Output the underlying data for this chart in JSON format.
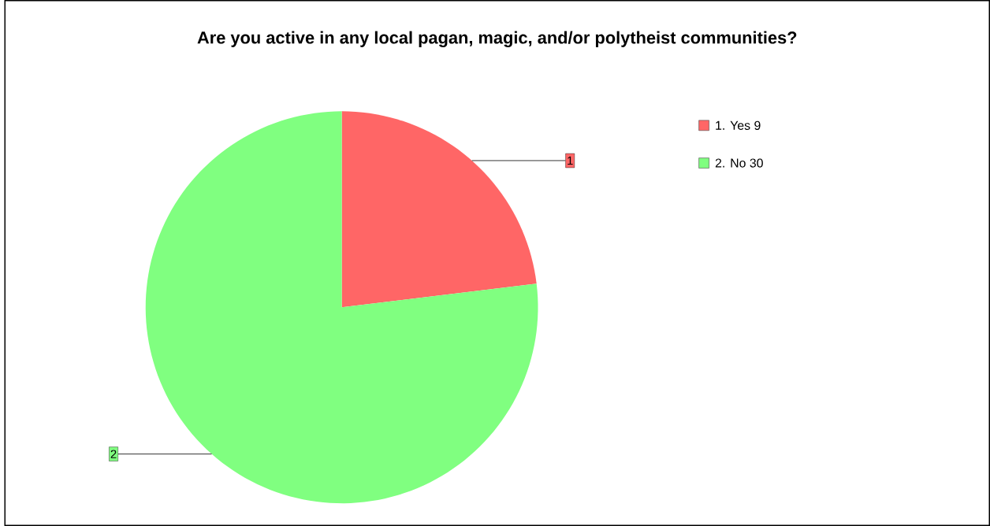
{
  "chart_data": {
    "type": "pie",
    "title": "Are you active in any local pagan, magic, and/or polytheist communities?",
    "categories": [
      "1. Yes",
      "2. No"
    ],
    "values": [
      9,
      30
    ],
    "colors": [
      "#ff6666",
      "#80ff80"
    ],
    "annotations": [
      "1",
      "2"
    ],
    "value_labels": [
      "9",
      "30"
    ],
    "legend": "top right"
  }
}
